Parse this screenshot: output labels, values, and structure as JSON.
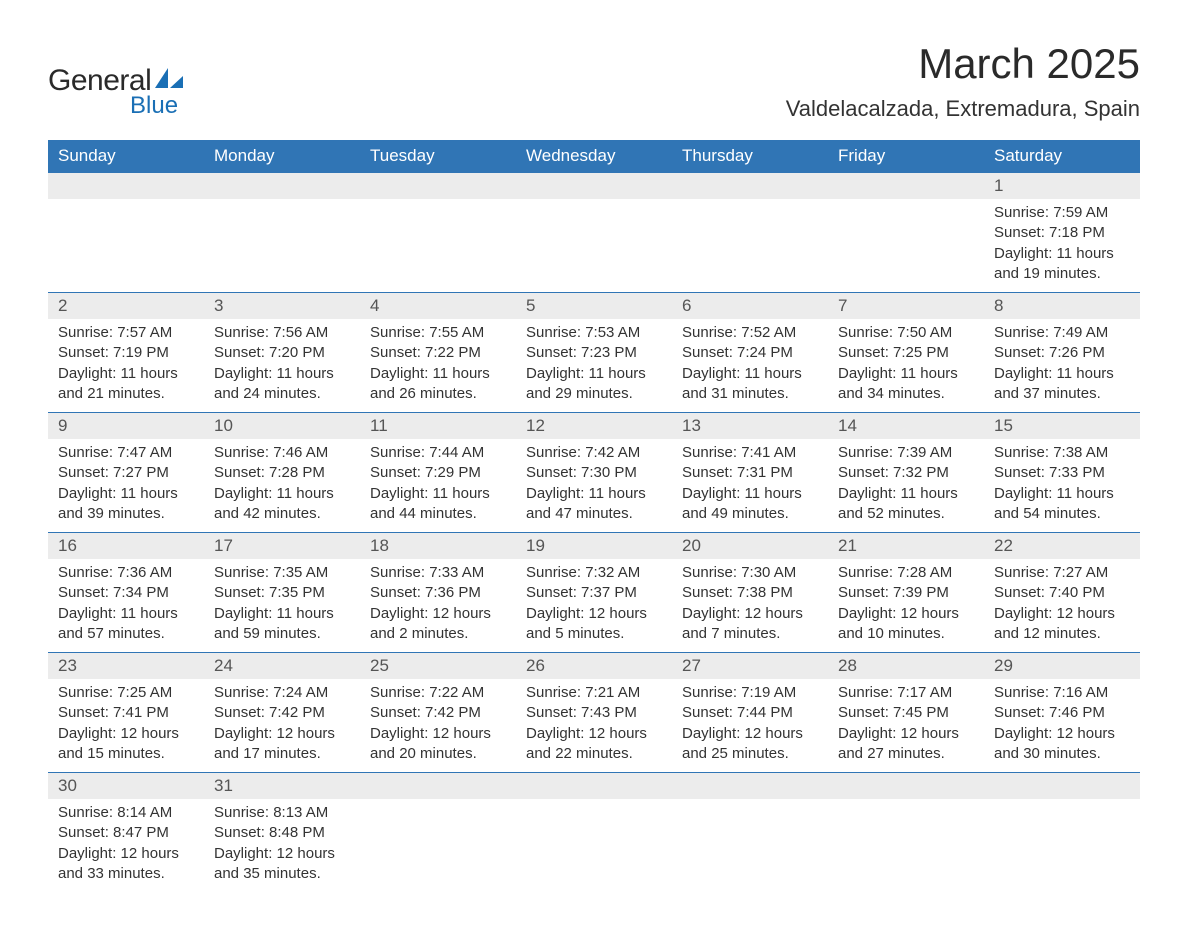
{
  "logo": {
    "word1": "General",
    "word2": "Blue",
    "text_color": "#2a2a2a",
    "accent_color": "#1a6fb5"
  },
  "title": "March 2025",
  "location": "Valdelacalzada, Extremadura, Spain",
  "colors": {
    "header_bg": "#3075b5",
    "header_text": "#ffffff",
    "daynum_bg": "#ececec",
    "daynum_text": "#555555",
    "body_text": "#333333",
    "row_border": "#3075b5",
    "page_bg": "#ffffff"
  },
  "typography": {
    "title_fontsize": 42,
    "location_fontsize": 22,
    "header_fontsize": 17,
    "daynum_fontsize": 17,
    "detail_fontsize": 15,
    "font_family": "Arial"
  },
  "layout": {
    "columns": 7,
    "rows": 6,
    "start_day_index": 6
  },
  "day_headers": [
    "Sunday",
    "Monday",
    "Tuesday",
    "Wednesday",
    "Thursday",
    "Friday",
    "Saturday"
  ],
  "weeks": [
    [
      null,
      null,
      null,
      null,
      null,
      null,
      {
        "n": "1",
        "sunrise": "Sunrise: 7:59 AM",
        "sunset": "Sunset: 7:18 PM",
        "daylight": "Daylight: 11 hours and 19 minutes."
      }
    ],
    [
      {
        "n": "2",
        "sunrise": "Sunrise: 7:57 AM",
        "sunset": "Sunset: 7:19 PM",
        "daylight": "Daylight: 11 hours and 21 minutes."
      },
      {
        "n": "3",
        "sunrise": "Sunrise: 7:56 AM",
        "sunset": "Sunset: 7:20 PM",
        "daylight": "Daylight: 11 hours and 24 minutes."
      },
      {
        "n": "4",
        "sunrise": "Sunrise: 7:55 AM",
        "sunset": "Sunset: 7:22 PM",
        "daylight": "Daylight: 11 hours and 26 minutes."
      },
      {
        "n": "5",
        "sunrise": "Sunrise: 7:53 AM",
        "sunset": "Sunset: 7:23 PM",
        "daylight": "Daylight: 11 hours and 29 minutes."
      },
      {
        "n": "6",
        "sunrise": "Sunrise: 7:52 AM",
        "sunset": "Sunset: 7:24 PM",
        "daylight": "Daylight: 11 hours and 31 minutes."
      },
      {
        "n": "7",
        "sunrise": "Sunrise: 7:50 AM",
        "sunset": "Sunset: 7:25 PM",
        "daylight": "Daylight: 11 hours and 34 minutes."
      },
      {
        "n": "8",
        "sunrise": "Sunrise: 7:49 AM",
        "sunset": "Sunset: 7:26 PM",
        "daylight": "Daylight: 11 hours and 37 minutes."
      }
    ],
    [
      {
        "n": "9",
        "sunrise": "Sunrise: 7:47 AM",
        "sunset": "Sunset: 7:27 PM",
        "daylight": "Daylight: 11 hours and 39 minutes."
      },
      {
        "n": "10",
        "sunrise": "Sunrise: 7:46 AM",
        "sunset": "Sunset: 7:28 PM",
        "daylight": "Daylight: 11 hours and 42 minutes."
      },
      {
        "n": "11",
        "sunrise": "Sunrise: 7:44 AM",
        "sunset": "Sunset: 7:29 PM",
        "daylight": "Daylight: 11 hours and 44 minutes."
      },
      {
        "n": "12",
        "sunrise": "Sunrise: 7:42 AM",
        "sunset": "Sunset: 7:30 PM",
        "daylight": "Daylight: 11 hours and 47 minutes."
      },
      {
        "n": "13",
        "sunrise": "Sunrise: 7:41 AM",
        "sunset": "Sunset: 7:31 PM",
        "daylight": "Daylight: 11 hours and 49 minutes."
      },
      {
        "n": "14",
        "sunrise": "Sunrise: 7:39 AM",
        "sunset": "Sunset: 7:32 PM",
        "daylight": "Daylight: 11 hours and 52 minutes."
      },
      {
        "n": "15",
        "sunrise": "Sunrise: 7:38 AM",
        "sunset": "Sunset: 7:33 PM",
        "daylight": "Daylight: 11 hours and 54 minutes."
      }
    ],
    [
      {
        "n": "16",
        "sunrise": "Sunrise: 7:36 AM",
        "sunset": "Sunset: 7:34 PM",
        "daylight": "Daylight: 11 hours and 57 minutes."
      },
      {
        "n": "17",
        "sunrise": "Sunrise: 7:35 AM",
        "sunset": "Sunset: 7:35 PM",
        "daylight": "Daylight: 11 hours and 59 minutes."
      },
      {
        "n": "18",
        "sunrise": "Sunrise: 7:33 AM",
        "sunset": "Sunset: 7:36 PM",
        "daylight": "Daylight: 12 hours and 2 minutes."
      },
      {
        "n": "19",
        "sunrise": "Sunrise: 7:32 AM",
        "sunset": "Sunset: 7:37 PM",
        "daylight": "Daylight: 12 hours and 5 minutes."
      },
      {
        "n": "20",
        "sunrise": "Sunrise: 7:30 AM",
        "sunset": "Sunset: 7:38 PM",
        "daylight": "Daylight: 12 hours and 7 minutes."
      },
      {
        "n": "21",
        "sunrise": "Sunrise: 7:28 AM",
        "sunset": "Sunset: 7:39 PM",
        "daylight": "Daylight: 12 hours and 10 minutes."
      },
      {
        "n": "22",
        "sunrise": "Sunrise: 7:27 AM",
        "sunset": "Sunset: 7:40 PM",
        "daylight": "Daylight: 12 hours and 12 minutes."
      }
    ],
    [
      {
        "n": "23",
        "sunrise": "Sunrise: 7:25 AM",
        "sunset": "Sunset: 7:41 PM",
        "daylight": "Daylight: 12 hours and 15 minutes."
      },
      {
        "n": "24",
        "sunrise": "Sunrise: 7:24 AM",
        "sunset": "Sunset: 7:42 PM",
        "daylight": "Daylight: 12 hours and 17 minutes."
      },
      {
        "n": "25",
        "sunrise": "Sunrise: 7:22 AM",
        "sunset": "Sunset: 7:42 PM",
        "daylight": "Daylight: 12 hours and 20 minutes."
      },
      {
        "n": "26",
        "sunrise": "Sunrise: 7:21 AM",
        "sunset": "Sunset: 7:43 PM",
        "daylight": "Daylight: 12 hours and 22 minutes."
      },
      {
        "n": "27",
        "sunrise": "Sunrise: 7:19 AM",
        "sunset": "Sunset: 7:44 PM",
        "daylight": "Daylight: 12 hours and 25 minutes."
      },
      {
        "n": "28",
        "sunrise": "Sunrise: 7:17 AM",
        "sunset": "Sunset: 7:45 PM",
        "daylight": "Daylight: 12 hours and 27 minutes."
      },
      {
        "n": "29",
        "sunrise": "Sunrise: 7:16 AM",
        "sunset": "Sunset: 7:46 PM",
        "daylight": "Daylight: 12 hours and 30 minutes."
      }
    ],
    [
      {
        "n": "30",
        "sunrise": "Sunrise: 8:14 AM",
        "sunset": "Sunset: 8:47 PM",
        "daylight": "Daylight: 12 hours and 33 minutes."
      },
      {
        "n": "31",
        "sunrise": "Sunrise: 8:13 AM",
        "sunset": "Sunset: 8:48 PM",
        "daylight": "Daylight: 12 hours and 35 minutes."
      },
      null,
      null,
      null,
      null,
      null
    ]
  ]
}
